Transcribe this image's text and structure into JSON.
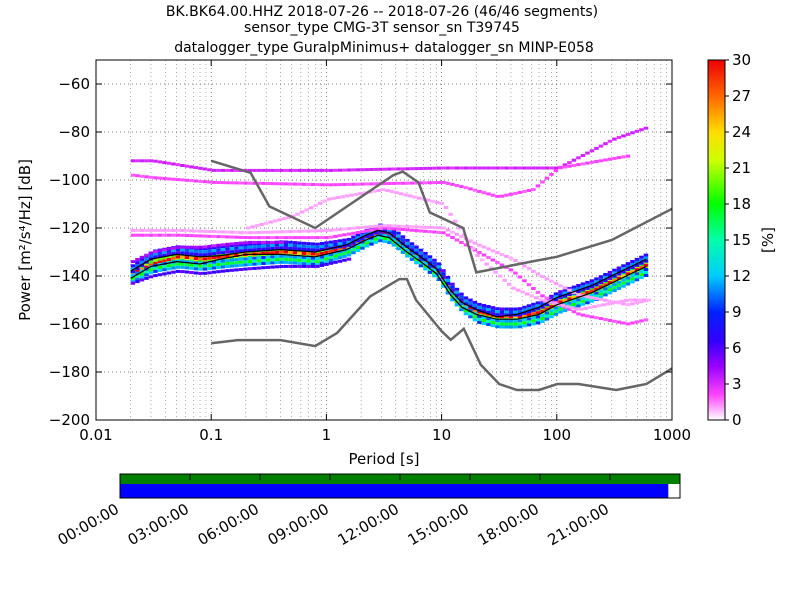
{
  "chart_data": {
    "type": "heatmap",
    "title_lines": [
      "BK.BK64.00.HHZ   2018-07-26 -- 2018-07-26  (46/46 segments)",
      "sensor_type CMG-3T sensor_sn T39745",
      "datalogger_type GuralpMinimus+ datalogger_sn MINP-E058"
    ],
    "xlabel": "Period [s]",
    "ylabel": "Power [m²/s⁴/Hz] [dB]",
    "x_scale": "log",
    "xlim": [
      0.01,
      1000
    ],
    "ylim": [
      -200,
      -50
    ],
    "x_ticks": [
      {
        "value": 0.01,
        "label": "0.01"
      },
      {
        "value": 0.1,
        "label": "0.1"
      },
      {
        "value": 1,
        "label": "1"
      },
      {
        "value": 10,
        "label": "10"
      },
      {
        "value": 100,
        "label": "100"
      },
      {
        "value": 1000,
        "label": "1000"
      }
    ],
    "y_ticks": [
      {
        "value": -60,
        "label": "−60"
      },
      {
        "value": -80,
        "label": "−80"
      },
      {
        "value": -100,
        "label": "−100"
      },
      {
        "value": -120,
        "label": "−120"
      },
      {
        "value": -140,
        "label": "−140"
      },
      {
        "value": -160,
        "label": "−160"
      },
      {
        "value": -180,
        "label": "−180"
      },
      {
        "value": -200,
        "label": "−200"
      }
    ],
    "grid": true,
    "colorbar": {
      "label": "[%]",
      "min": 0,
      "max": 30,
      "ticks": [
        {
          "value": 0,
          "label": "0"
        },
        {
          "value": 3,
          "label": "3"
        },
        {
          "value": 6,
          "label": "6"
        },
        {
          "value": 9,
          "label": "9"
        },
        {
          "value": 12,
          "label": "12"
        },
        {
          "value": 15,
          "label": "15"
        },
        {
          "value": 18,
          "label": "18"
        },
        {
          "value": 21,
          "label": "21"
        },
        {
          "value": 24,
          "label": "24"
        },
        {
          "value": 27,
          "label": "27"
        },
        {
          "value": 30,
          "label": "30"
        }
      ]
    },
    "series": [
      {
        "color": "#666666",
        "x": [
          0.1,
          0.22,
          0.32,
          0.8,
          3.8,
          4.6,
          6.3,
          7.9,
          15.4,
          20,
          60,
          100,
          300,
          1000
        ],
        "values": [
          -92,
          -97,
          -111,
          -120,
          -98,
          -96.5,
          -101,
          -113.5,
          -120,
          -138.5,
          -134,
          -132,
          -125,
          -112
        ]
      },
      {
        "color": "#666666",
        "x": [
          0.1,
          0.17,
          0.4,
          0.8,
          1.24,
          2.4,
          4.3,
          5,
          6,
          10,
          12,
          15.6,
          21.9,
          31.6,
          45,
          70,
          101,
          154,
          328,
          600,
          1000
        ],
        "values": [
          -168,
          -166.7,
          -166.7,
          -169.2,
          -163.7,
          -148.5,
          -141.3,
          -141.3,
          -150,
          -163,
          -166.6,
          -162,
          -177,
          -185,
          -187.5,
          -187.5,
          -185,
          -185,
          -187.5,
          -185,
          -178.5
        ]
      },
      {
        "color": "#000000",
        "x": [
          0.02,
          0.03,
          0.05,
          0.08,
          0.12,
          0.2,
          0.4,
          0.8,
          1.5,
          2.2,
          2.8,
          3.5,
          5,
          7,
          9,
          12,
          15,
          20,
          30,
          45,
          70,
          100,
          200,
          400,
          600
        ],
        "values": [
          -138,
          -133,
          -131,
          -132,
          -131.5,
          -130,
          -129,
          -130,
          -127,
          -123,
          -121,
          -122,
          -128,
          -133,
          -137,
          -146,
          -151,
          -154,
          -157,
          -156,
          -153,
          -149,
          -144,
          -137,
          -133
        ]
      },
      {
        "color": "#000000",
        "x": [
          0.02,
          0.03,
          0.05,
          0.08,
          0.12,
          0.2,
          0.4,
          0.8,
          1.5,
          2.2,
          2.8,
          3.5,
          5,
          7,
          9,
          12,
          15,
          20,
          30,
          45,
          70,
          100,
          200,
          400,
          600
        ],
        "values": [
          -141,
          -136,
          -134,
          -135,
          -133,
          -131,
          -131,
          -132,
          -129,
          -125,
          -123,
          -124,
          -130,
          -135,
          -139,
          -148,
          -153,
          -156,
          -158,
          -158,
          -156,
          -152,
          -147,
          -140,
          -136
        ]
      }
    ],
    "density_bands": [
      {
        "x": [
          0.02,
          0.03,
          0.05,
          0.08,
          0.12,
          0.2,
          0.4,
          0.8,
          1.5,
          2.2,
          2.8,
          3.5,
          5,
          7,
          9,
          12,
          15,
          20,
          30,
          45,
          70,
          100,
          200,
          400,
          600
        ],
        "values": [
          -139,
          -135,
          -132,
          -133,
          -132,
          -131,
          -130,
          -131,
          -128,
          -124,
          -122,
          -123,
          -129,
          -134,
          -138,
          -147,
          -152,
          -155,
          -157,
          -157,
          -155,
          -151,
          -146,
          -139,
          -135
        ],
        "percent": 28
      },
      {
        "x": [
          0.02,
          0.03,
          0.05,
          0.08,
          0.12,
          0.2,
          0.4,
          0.8,
          1.5,
          2.2,
          2.8,
          3.5,
          5,
          7,
          9,
          12,
          15,
          20,
          30,
          45,
          70,
          100,
          200,
          400,
          600
        ],
        "values": [
          -141,
          -137,
          -135,
          -136,
          -135,
          -134,
          -133,
          -134,
          -130,
          -126,
          -124,
          -125,
          -131,
          -136,
          -140,
          -149,
          -154,
          -158,
          -160,
          -160,
          -158,
          -154,
          -149,
          -142,
          -138
        ],
        "percent": 16
      },
      {
        "x": [
          0.02,
          0.03,
          0.05,
          0.08,
          0.12,
          0.2,
          0.4,
          0.8,
          1.5,
          2.2,
          2.8,
          3.5,
          5,
          7,
          9,
          12,
          15,
          20,
          30,
          45,
          70,
          100,
          200,
          400,
          600
        ],
        "values": [
          -137,
          -131,
          -129,
          -130,
          -129,
          -128,
          -127,
          -128,
          -126,
          -122,
          -120,
          -121,
          -127,
          -132,
          -136,
          -145,
          -150,
          -153,
          -155,
          -155,
          -152,
          -148,
          -143,
          -136,
          -132
        ],
        "percent": 10
      },
      {
        "x": [
          0.02,
          0.03,
          0.05,
          0.08,
          0.12,
          0.2,
          0.4,
          0.8,
          1.5
        ],
        "values": [
          -143,
          -140,
          -138,
          -139,
          -138,
          -137,
          -136,
          -136,
          -133
        ],
        "percent": 6
      },
      {
        "x": [
          0.02,
          0.03,
          0.05,
          0.08,
          0.12,
          0.2,
          0.4
        ],
        "values": [
          -134,
          -130,
          -128,
          -128,
          -127,
          -126,
          -126
        ],
        "percent": 4
      },
      {
        "x": [
          0.02,
          0.03,
          0.1,
          1,
          10,
          100,
          300,
          600
        ],
        "values": [
          -92,
          -92,
          -96,
          -96,
          -95,
          -95,
          -83,
          -78
        ],
        "percent": 3
      },
      {
        "x": [
          0.02,
          0.03,
          0.1,
          1,
          10,
          15,
          30,
          60,
          100,
          400
        ],
        "values": [
          -98,
          -99,
          -101,
          -102,
          -101,
          -103,
          -107,
          -104,
          -95,
          -90
        ],
        "percent": 2
      },
      {
        "x": [
          0.02,
          0.05,
          0.2,
          1,
          3,
          10,
          20,
          40,
          70,
          150,
          400,
          600
        ],
        "values": [
          -123,
          -123,
          -124,
          -124,
          -120,
          -122,
          -130,
          -138,
          -148,
          -156,
          -160,
          -158
        ],
        "percent": 2
      },
      {
        "x": [
          0.02,
          0.05,
          0.2,
          1,
          3,
          10,
          20,
          40,
          70,
          150,
          400,
          600
        ],
        "values": [
          -121,
          -121,
          -122,
          -121,
          -119,
          -120,
          -127,
          -133,
          -140,
          -148,
          -152,
          -150
        ],
        "percent": 1
      },
      {
        "x": [
          0.2,
          0.5,
          1,
          3,
          10,
          20,
          40,
          70,
          150,
          400,
          600
        ],
        "values": [
          -120,
          -115,
          -108,
          -104,
          -110,
          -132,
          -145,
          -150,
          -154,
          -150,
          -150
        ],
        "percent": 1
      }
    ]
  },
  "timeline": {
    "tick_labels": [
      "00:00:00",
      "03:00:00",
      "06:00:00",
      "09:00:00",
      "12:00:00",
      "15:00:00",
      "18:00:00",
      "21:00:00"
    ],
    "tick_hours": [
      0,
      3,
      6,
      9,
      12,
      15,
      18,
      21
    ],
    "span_hours": 24,
    "data_coverage_end_hours": 23.5,
    "top_bar_color": "#008000",
    "bottom_bar_color": "#0000ff"
  }
}
